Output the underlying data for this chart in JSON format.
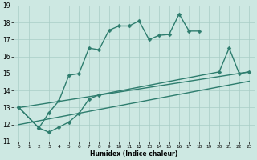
{
  "xlabel": "Humidex (Indice chaleur)",
  "xlim": [
    -0.5,
    23.5
  ],
  "ylim": [
    11,
    19
  ],
  "yticks": [
    11,
    12,
    13,
    14,
    15,
    16,
    17,
    18,
    19
  ],
  "xticks": [
    0,
    1,
    2,
    3,
    4,
    5,
    6,
    7,
    8,
    9,
    10,
    11,
    12,
    13,
    14,
    15,
    16,
    17,
    18,
    19,
    20,
    21,
    22,
    23
  ],
  "bg_color": "#cde8e2",
  "grid_color": "#a8cdc6",
  "line_color": "#2e7d6e",
  "line1_x": [
    0,
    2,
    3,
    4,
    5,
    6,
    7,
    8,
    9,
    10,
    11,
    12,
    13,
    14,
    15,
    16,
    17,
    18
  ],
  "line1_y": [
    13.0,
    11.8,
    12.7,
    13.4,
    14.9,
    15.0,
    16.5,
    16.4,
    17.55,
    17.8,
    17.8,
    18.1,
    17.0,
    17.25,
    17.3,
    18.5,
    17.5,
    17.5
  ],
  "line2_x": [
    0,
    2,
    3,
    4,
    5,
    6,
    7,
    8,
    20,
    21,
    22,
    23
  ],
  "line2_y": [
    13.0,
    11.8,
    11.55,
    11.85,
    12.15,
    12.65,
    13.5,
    13.75,
    15.1,
    16.5,
    15.0,
    15.1
  ],
  "line3_x": [
    0,
    23
  ],
  "line3_y": [
    13.0,
    15.1
  ],
  "line4_x": [
    0,
    23
  ],
  "line4_y": [
    12.0,
    14.55
  ],
  "markersize": 2.5,
  "linewidth": 1.0
}
